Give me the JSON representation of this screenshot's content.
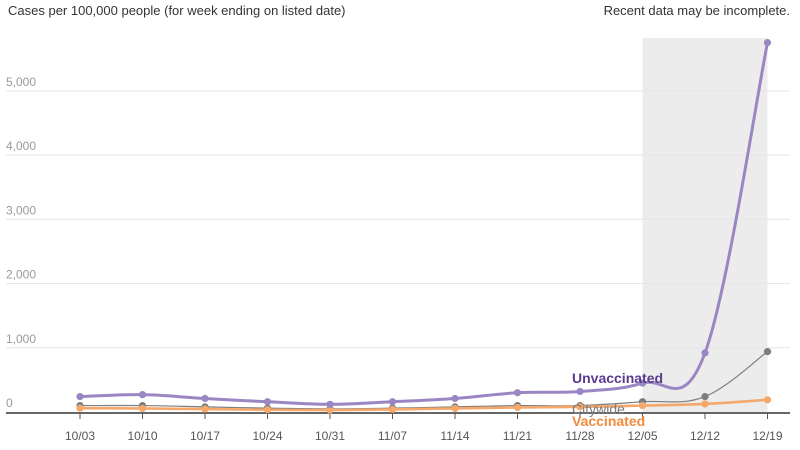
{
  "header": {
    "title": "Cases per 100,000 people (for week ending on listed date)",
    "note": "Recent data may be incomplete."
  },
  "colors": {
    "unvaccinated": "#9b86c4",
    "citywide": "#7d7d7d",
    "vaccinated": "#f5a86a",
    "shade": "#ececec"
  },
  "chart_data": {
    "type": "line",
    "x": [
      "10/03",
      "10/10",
      "10/17",
      "10/24",
      "10/31",
      "11/07",
      "11/14",
      "11/21",
      "11/28",
      "12/05",
      "12/12",
      "12/19"
    ],
    "ylim": [
      0,
      5900
    ],
    "yticks": [
      0,
      1000,
      2000,
      3000,
      4000,
      5000
    ],
    "ytick_labels": [
      "0",
      "1,000",
      "2,000",
      "3,000",
      "4,000",
      "5,000"
    ],
    "shaded_region": {
      "from": "12/05",
      "to": "12/19"
    },
    "grid": true,
    "series": [
      {
        "name": "Unvaccinated",
        "color": "#9b86c4",
        "label_color": "#5b3a8e",
        "values": [
          240,
          270,
          210,
          160,
          120,
          160,
          210,
          300,
          320,
          450,
          920,
          5750
        ]
      },
      {
        "name": "Citywide",
        "color": "#7d7d7d",
        "label_color": "#7a7a7a",
        "values": [
          100,
          100,
          80,
          60,
          50,
          60,
          80,
          100,
          100,
          160,
          240,
          940
        ]
      },
      {
        "name": "Vaccinated",
        "color": "#f5a86a",
        "label_color": "#f08a3c",
        "values": [
          60,
          55,
          45,
          35,
          30,
          40,
          55,
          70,
          80,
          100,
          125,
          190
        ]
      }
    ]
  }
}
